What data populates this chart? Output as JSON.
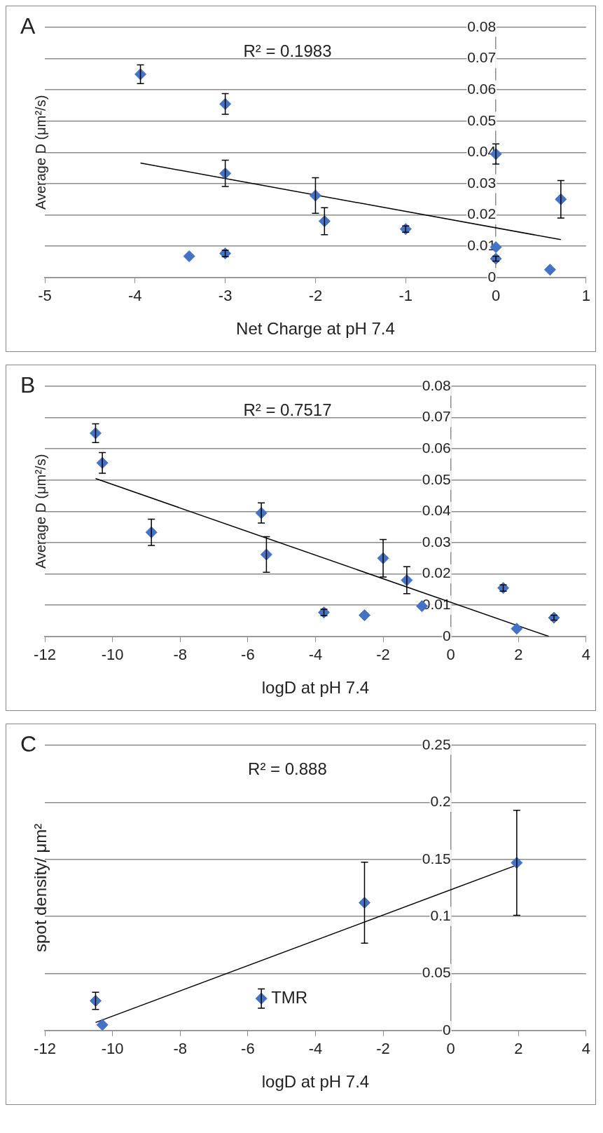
{
  "chart_data": [
    {
      "type": "scatter",
      "title": "A",
      "xlabel": "Net Charge at pH 7.4",
      "ylabel": "Average D (μm²/s)",
      "annotations": [
        "R² = 0.1983"
      ],
      "xlim": [
        -5,
        1
      ],
      "xticks": [
        -5,
        -4,
        -3,
        -2,
        -1,
        0,
        1
      ],
      "ylim": [
        0,
        0.08
      ],
      "yticks": [
        0,
        0.01,
        0.02,
        0.03,
        0.04,
        0.05,
        0.06,
        0.07,
        0.08
      ],
      "grid": "y",
      "marker": "diamond",
      "legend": false,
      "series": [
        {
          "color": "#4472c4",
          "x": [
            -3.94,
            -3,
            -3,
            -2,
            -1.9,
            -1,
            -3.4,
            -3,
            0,
            0,
            0,
            0.6,
            0.72
          ],
          "values": [
            0.065,
            0.0555,
            0.0333,
            0.0262,
            0.018,
            0.0155,
            0.0068,
            0.0077,
            0.0395,
            0.0097,
            0.006,
            0.0025,
            0.025
          ],
          "errors": [
            0.003,
            0.0033,
            0.0042,
            0.0057,
            0.0043,
            0.001,
            null,
            0.001,
            0.0032,
            null,
            0.0008,
            null,
            0.006
          ]
        },
        {
          "type": "line",
          "color": "#000000",
          "marker": "none",
          "x": [
            -3.94,
            0.72
          ],
          "values": [
            0.0366,
            0.0121
          ]
        }
      ]
    },
    {
      "type": "scatter",
      "title": "B",
      "xlabel": "logD at pH 7.4",
      "ylabel": "Average D (μm²/s)",
      "annotations": [
        "R² = 0.7517"
      ],
      "xlim": [
        -12,
        4
      ],
      "xticks": [
        -12,
        -10,
        -8,
        -6,
        -4,
        -2,
        0,
        2,
        4
      ],
      "ylim": [
        0,
        0.08
      ],
      "yticks": [
        0,
        0.01,
        0.02,
        0.03,
        0.04,
        0.05,
        0.06,
        0.07,
        0.08
      ],
      "grid": "y",
      "marker": "diamond",
      "legend": false,
      "series": [
        {
          "color": "#4472c4",
          "x": [
            -10.5,
            -10.3,
            -8.85,
            -5.6,
            -5.45,
            -3.75,
            -2.55,
            -2,
            -1.3,
            -0.85,
            1.55,
            1.95,
            3.05
          ],
          "values": [
            0.065,
            0.0555,
            0.0333,
            0.0395,
            0.0262,
            0.0077,
            0.0068,
            0.025,
            0.018,
            0.0097,
            0.0155,
            0.0025,
            0.006
          ],
          "errors": [
            0.003,
            0.0033,
            0.0042,
            0.0032,
            0.0057,
            0.001,
            null,
            0.006,
            0.0043,
            null,
            0.001,
            null,
            0.0008
          ]
        },
        {
          "type": "line",
          "color": "#000000",
          "marker": "none",
          "x": [
            -10.5,
            2.9
          ],
          "values": [
            0.0505,
            0
          ]
        }
      ]
    },
    {
      "type": "scatter",
      "title": "C",
      "xlabel": "logD at pH 7.4",
      "ylabel": "spot density/ μm²",
      "annotations": [
        "R² = 0.888",
        {
          "text": "TMR",
          "x": -5.6,
          "y": 0.028
        }
      ],
      "xlim": [
        -12,
        4
      ],
      "xticks": [
        -12,
        -10,
        -8,
        -6,
        -4,
        -2,
        0,
        2,
        4
      ],
      "ylim": [
        0,
        0.25
      ],
      "yticks": [
        0,
        0.05,
        0.1,
        0.15,
        0.2,
        0.25
      ],
      "grid": "y",
      "marker": "diamond",
      "legend": false,
      "series": [
        {
          "color": "#4472c4",
          "x": [
            -10.5,
            -10.3,
            -5.6,
            -2.55,
            1.95
          ],
          "values": [
            0.026,
            0.005,
            0.028,
            0.112,
            0.147
          ],
          "errors": [
            0.0075,
            null,
            0.0085,
            0.0355,
            0.046
          ]
        },
        {
          "type": "line",
          "color": "#000000",
          "marker": "none",
          "x": [
            -10.5,
            1.95
          ],
          "values": [
            0.007,
            0.145
          ]
        }
      ]
    }
  ]
}
